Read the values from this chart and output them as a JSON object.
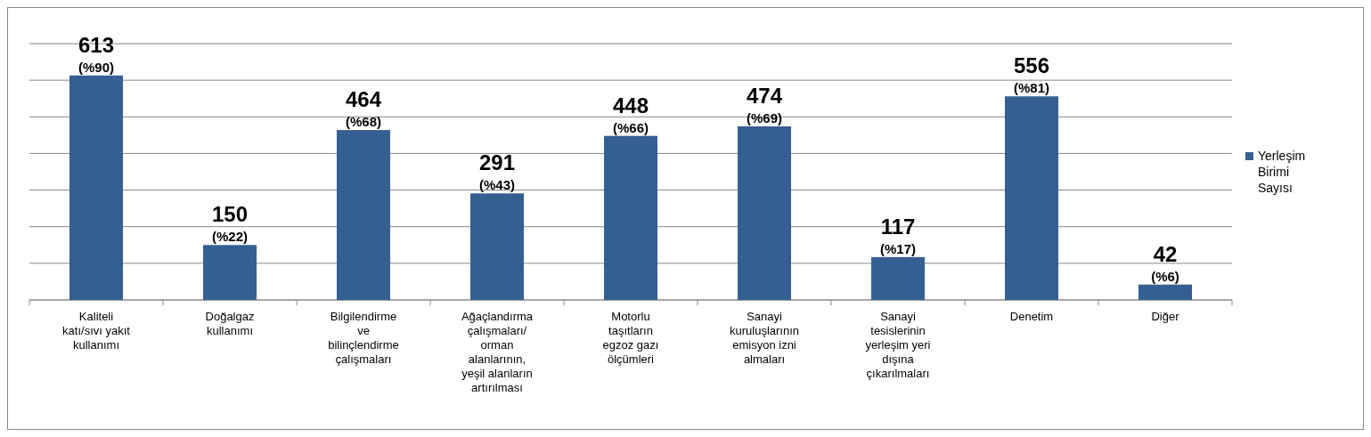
{
  "chart_data": {
    "type": "bar",
    "categories": [
      "Kaliteli katı/sıvı yakıt kullanımı",
      "Doğalgaz kullanımı",
      "Bilgilendirme ve bilinçlendirme çalışmaları",
      "Ağaçlandırma çalışmaları/ orman alanlarının, yeşil alanların artırılması",
      "Motorlu taşıtların egzoz gazı ölçümleri",
      "Sanayi kuruluşlarının emisyon izni almaları",
      "Sanayi tesislerinin yerleşim yeri dışına çıkarılmaları",
      "Denetim",
      "Diğer"
    ],
    "series": [
      {
        "name": "Yerleşim Birimi Sayısı",
        "color": "#355f91",
        "values": [
          613,
          150,
          464,
          291,
          448,
          474,
          117,
          556,
          42
        ],
        "value_labels": [
          "613\n(%90)",
          "150\n(%22)",
          "464\n(%68)",
          "291\n(%43)",
          "448\n(%66)",
          "474\n(%69)",
          "117\n(%17)",
          "556\n(%81)",
          "42\n(%6)"
        ]
      }
    ],
    "ylim": [
      0,
      700
    ],
    "yticks": [
      {
        "value": 0,
        "label": null
      },
      {
        "value": 100,
        "label": null
      },
      {
        "value": 200,
        "label": null
      },
      {
        "value": 300,
        "label": null
      },
      {
        "value": 400,
        "label": null
      },
      {
        "value": 500,
        "label": null
      },
      {
        "value": 600,
        "label": null
      },
      {
        "value": 700,
        "label": null
      }
    ],
    "tick_labels": "x",
    "grid": "y",
    "legend": "right"
  }
}
